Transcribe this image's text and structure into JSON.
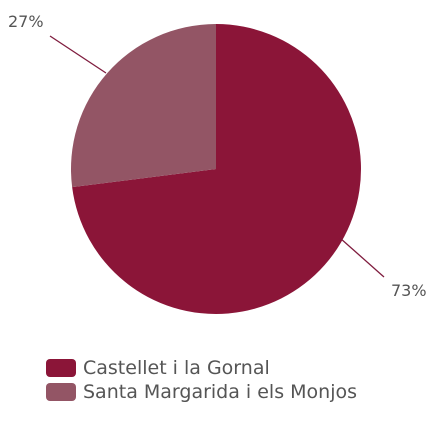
{
  "chart_data": {
    "type": "pie",
    "title": "",
    "slices": [
      {
        "label": "Castellet i la Gornal",
        "value": 73,
        "display": "73%",
        "color": "#8b1538"
      },
      {
        "label": "Santa Margarida i els Monjos",
        "value": 27,
        "display": "27%",
        "color": "#935565"
      }
    ],
    "legend_position": "bottom-left"
  }
}
